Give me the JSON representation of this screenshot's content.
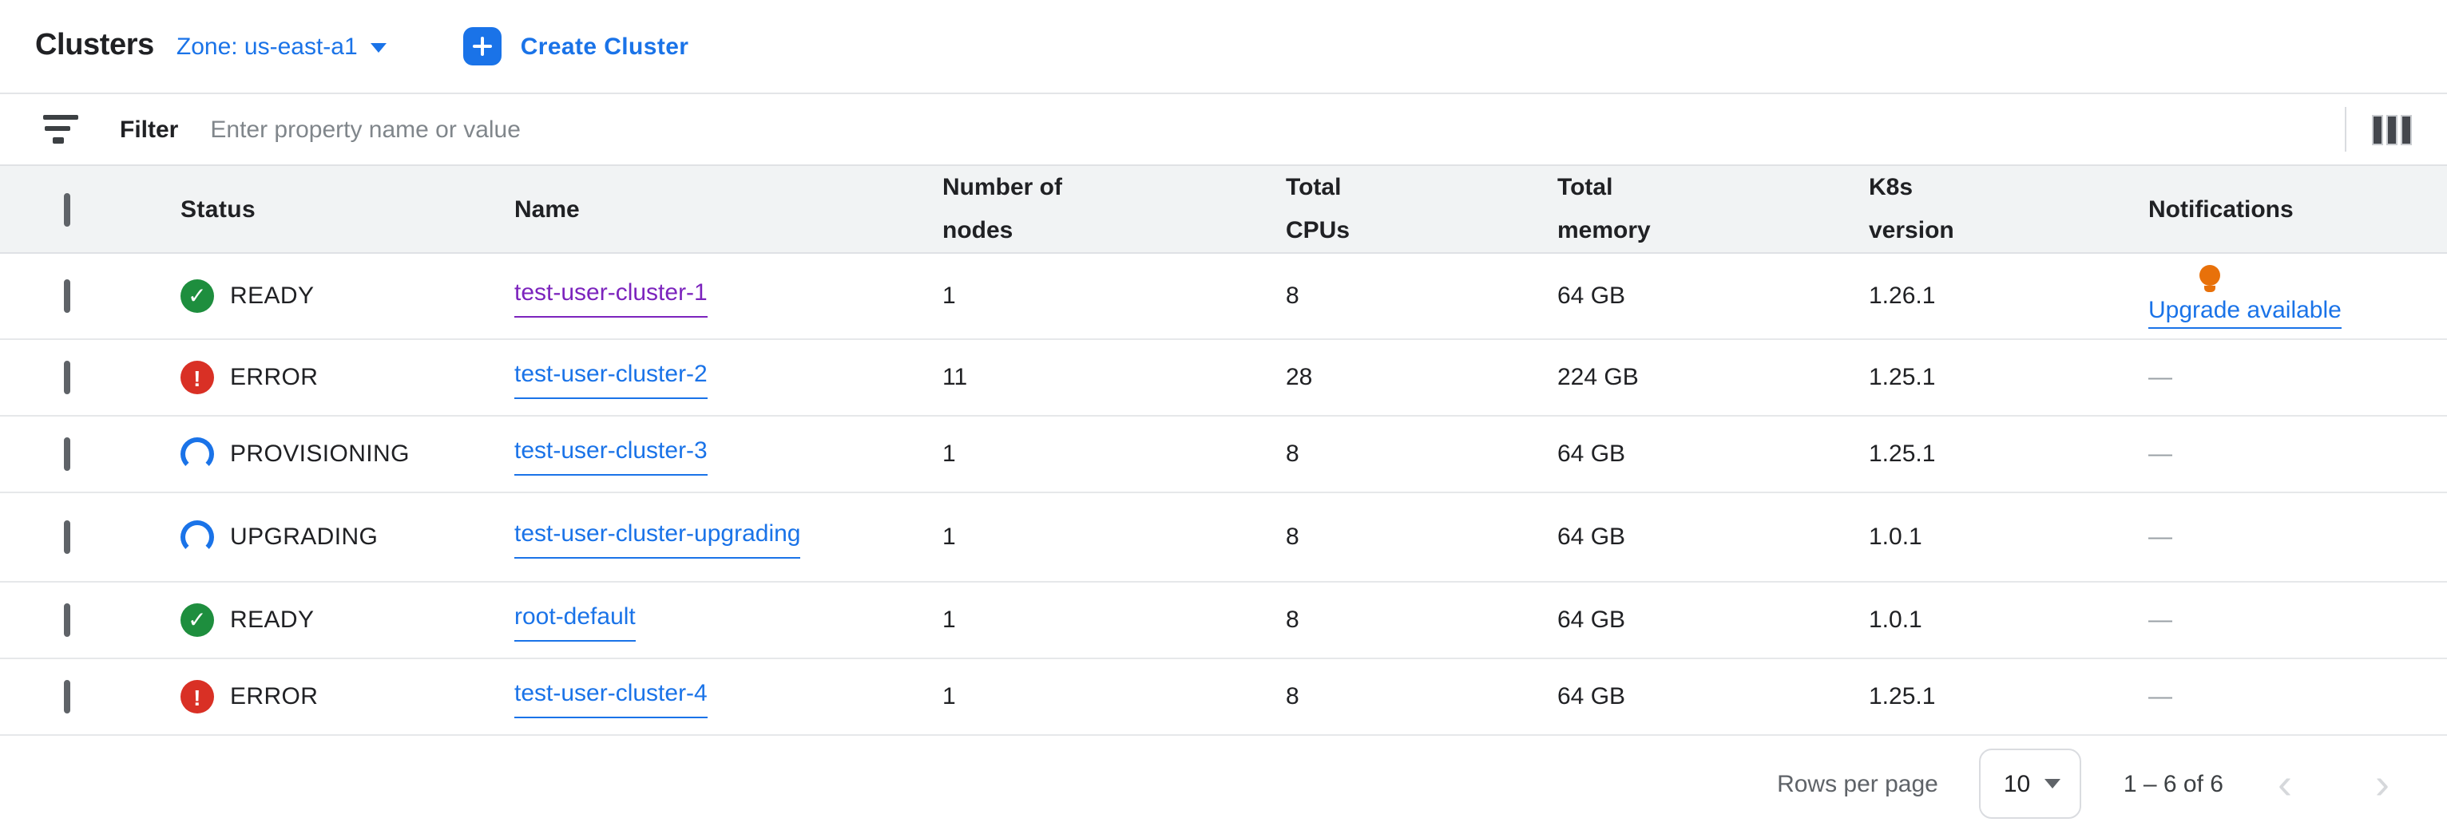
{
  "header": {
    "title": "Clusters",
    "zone_selector": {
      "label": "Zone: us-east-a1",
      "icon": "dropdown-caret-icon"
    },
    "create_button": {
      "label": "Create Cluster",
      "icon": "add-icon"
    }
  },
  "filter_bar": {
    "icon": "filter-icon",
    "label": "Filter",
    "placeholder": "Enter property name or value",
    "columns_icon": "column-display-icon"
  },
  "table": {
    "columns": {
      "status": "Status",
      "name": "Name",
      "nodes": "Number of nodes",
      "cpus": "Total CPUs",
      "memory": "Total memory",
      "k8s": "K8s version",
      "notifications": "Notifications"
    },
    "rows": [
      {
        "status": "READY",
        "state": "ready",
        "name": "test-user-cluster-1",
        "visited": true,
        "nodes": "1",
        "cpus": "8",
        "memory": "64 GB",
        "k8s": "1.26.1",
        "notification": "Upgrade available",
        "notification_type": "upgrade",
        "notification_icon": "lightbulb-icon"
      },
      {
        "status": "ERROR",
        "state": "error",
        "name": "test-user-cluster-2",
        "visited": false,
        "nodes": "11",
        "cpus": "28",
        "memory": "224 GB",
        "k8s": "1.25.1",
        "notification": "—",
        "notification_type": "none"
      },
      {
        "status": "PROVISIONING",
        "state": "provisioning",
        "name": "test-user-cluster-3",
        "visited": false,
        "nodes": "1",
        "cpus": "8",
        "memory": "64 GB",
        "k8s": "1.25.1",
        "notification": "—",
        "notification_type": "none"
      },
      {
        "status": "UPGRADING",
        "state": "upgrading",
        "name": "test-user-cluster-upgrading",
        "visited": false,
        "nodes": "1",
        "cpus": "8",
        "memory": "64 GB",
        "k8s": "1.0.1",
        "notification": "—",
        "notification_type": "none"
      },
      {
        "status": "READY",
        "state": "ready",
        "name": "root-default",
        "visited": false,
        "nodes": "1",
        "cpus": "8",
        "memory": "64 GB",
        "k8s": "1.0.1",
        "notification": "—",
        "notification_type": "none"
      },
      {
        "status": "ERROR",
        "state": "error",
        "name": "test-user-cluster-4",
        "visited": false,
        "nodes": "1",
        "cpus": "8",
        "memory": "64 GB",
        "k8s": "1.25.1",
        "notification": "—",
        "notification_type": "none"
      }
    ]
  },
  "pagination": {
    "rows_per_page_label": "Rows per page",
    "rows_per_page_value": "10",
    "range": "1 – 6 of 6",
    "prev_icon": "‹",
    "next_icon": "›"
  },
  "icons": {
    "ready_glyph": "✓",
    "error_glyph": "!"
  },
  "colors": {
    "accent_blue": "#1a73e8",
    "visited_purple": "#7c24bd",
    "ready_green": "#1e8e3e",
    "error_red": "#d93025",
    "bulb_orange": "#e8710a",
    "header_row_bg": "#f1f3f4"
  }
}
